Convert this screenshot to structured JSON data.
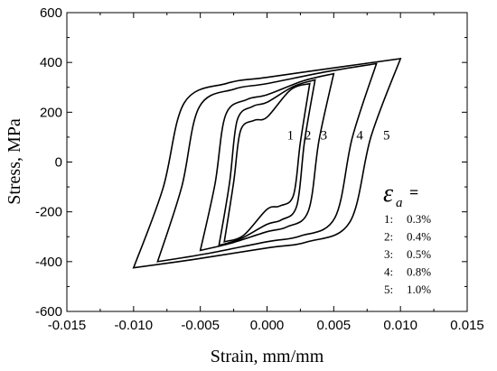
{
  "chart_data": {
    "type": "line",
    "title": "",
    "xlabel": "Strain, mm/mm",
    "ylabel": "Stress, MPa",
    "xlim": [
      -0.015,
      0.015
    ],
    "ylim": [
      -600,
      600
    ],
    "x_ticks": [
      -0.015,
      -0.01,
      -0.005,
      0.0,
      0.005,
      0.01,
      0.015
    ],
    "x_tick_labels": [
      "-0.015",
      "-0.010",
      "-0.005",
      "0.000",
      "0.005",
      "0.010",
      "0.015"
    ],
    "y_ticks": [
      -600,
      -400,
      -200,
      0,
      200,
      400,
      600
    ],
    "y_tick_labels": [
      "-600",
      "-400",
      "-200",
      "0",
      "200",
      "400",
      "600"
    ],
    "grid": false,
    "series": [
      {
        "label": "1",
        "strain_amplitude": "0.3%",
        "tip_top": [
          0.0032,
          315
        ],
        "tip_bottom": [
          -0.0032,
          -320
        ],
        "stress_at_zero_strain": [
          180,
          -190
        ]
      },
      {
        "label": "2",
        "strain_amplitude": "0.4%",
        "tip_top": [
          0.0036,
          330
        ],
        "tip_bottom": [
          -0.0037,
          -335
        ],
        "stress_at_zero_strain": [
          240,
          -250
        ]
      },
      {
        "label": "3",
        "strain_amplitude": "0.5%",
        "tip_top": [
          0.005,
          355
        ],
        "tip_bottom": [
          -0.005,
          -355
        ],
        "stress_at_zero_strain": [
          270,
          -280
        ]
      },
      {
        "label": "4",
        "strain_amplitude": "0.8%",
        "tip_top": [
          0.0082,
          395
        ],
        "tip_bottom": [
          -0.0082,
          -400
        ],
        "stress_at_zero_strain": [
          315,
          -320
        ]
      },
      {
        "label": "5",
        "strain_amplitude": "1.0%",
        "tip_top": [
          0.01,
          415
        ],
        "tip_bottom": [
          -0.01,
          -425
        ],
        "stress_at_zero_strain": [
          340,
          -345
        ]
      }
    ],
    "curve_labels": [
      "1",
      "2",
      "3",
      "4",
      "5"
    ],
    "legend": {
      "position": "lower-right",
      "symbol": "ε",
      "subscript": "a",
      "equals": "=",
      "entries": [
        {
          "num": "1:",
          "value": "0.3%"
        },
        {
          "num": "2:",
          "value": "0.4%"
        },
        {
          "num": "3:",
          "value": "0.5%"
        },
        {
          "num": "4:",
          "value": "0.8%"
        },
        {
          "num": "5:",
          "value": "1.0%"
        }
      ]
    }
  }
}
